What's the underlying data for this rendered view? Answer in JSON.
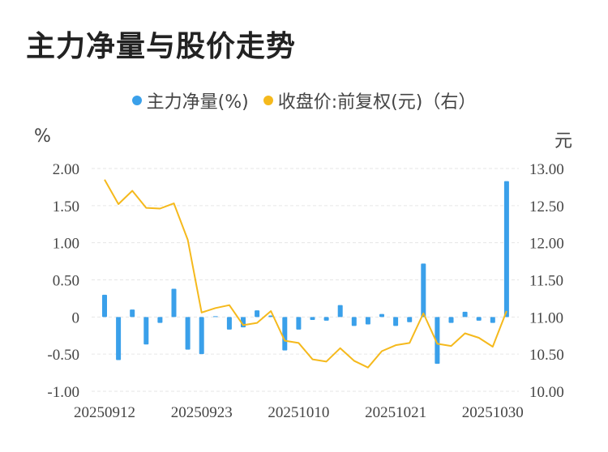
{
  "title": "主力净量与股价走势",
  "legend": {
    "net": "主力净量(%)",
    "price": "收盘价:前复权(元)（右）"
  },
  "units": {
    "left": "%",
    "right": "元"
  },
  "colors": {
    "bar": "#3aa0ea",
    "line": "#f5b91c",
    "grid": "#e6e6e6"
  },
  "chart_data": {
    "type": "bar+line",
    "x_tick_labels": [
      "20250912",
      "20250923",
      "20251010",
      "20251021",
      "20251030"
    ],
    "x_tick_index": [
      0,
      7,
      14,
      21,
      28
    ],
    "left_axis": {
      "ylim": [
        -1.0,
        2.0
      ],
      "ticks": [
        "2.00",
        "1.50",
        "1.00",
        "0.50",
        "0",
        "-0.50",
        "-1.00"
      ],
      "tick_values": [
        2.0,
        1.5,
        1.0,
        0.5,
        0,
        -0.5,
        -1.0
      ]
    },
    "right_axis": {
      "ylim": [
        10.0,
        13.0
      ],
      "ticks": [
        "13.00",
        "12.50",
        "12.00",
        "11.50",
        "11.00",
        "10.50",
        "10.00"
      ],
      "tick_values": [
        13.0,
        12.5,
        12.0,
        11.5,
        11.0,
        10.5,
        10.0
      ]
    },
    "series": [
      {
        "name": "主力净量(%)",
        "kind": "bar",
        "axis": "left",
        "values": [
          0.3,
          -0.58,
          0.1,
          -0.37,
          -0.08,
          0.38,
          -0.44,
          -0.5,
          0.01,
          -0.17,
          -0.14,
          0.09,
          0.02,
          -0.45,
          -0.17,
          -0.04,
          -0.05,
          0.16,
          -0.12,
          -0.1,
          0.04,
          -0.12,
          -0.07,
          0.72,
          -0.63,
          -0.08,
          0.07,
          -0.05,
          -0.08,
          1.83
        ]
      },
      {
        "name": "收盘价:前复权(元)（右）",
        "kind": "line",
        "axis": "right",
        "values": [
          12.85,
          12.52,
          12.7,
          12.47,
          12.46,
          12.53,
          12.04,
          11.06,
          11.12,
          11.16,
          10.89,
          10.92,
          11.08,
          10.68,
          10.65,
          10.43,
          10.4,
          10.58,
          10.41,
          10.32,
          10.54,
          10.62,
          10.65,
          11.05,
          10.64,
          10.61,
          10.78,
          10.72,
          10.6,
          11.08
        ]
      }
    ]
  }
}
